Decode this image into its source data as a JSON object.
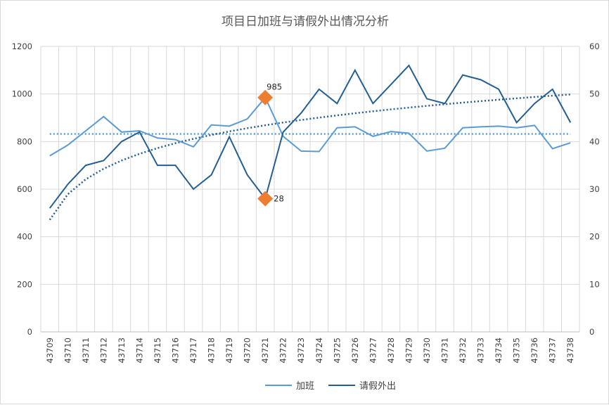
{
  "chart_data": {
    "type": "line",
    "title": "项目日加班与请假外出情况分析",
    "categories": [
      "43709",
      "43710",
      "43711",
      "43712",
      "43713",
      "43714",
      "43715",
      "43716",
      "43717",
      "43718",
      "43719",
      "43720",
      "43721",
      "43722",
      "43723",
      "43724",
      "43725",
      "43726",
      "43727",
      "43728",
      "43729",
      "43730",
      "43731",
      "43732",
      "43733",
      "43734",
      "43735",
      "43736",
      "43737",
      "43738"
    ],
    "y_left": {
      "min": 0,
      "max": 1200,
      "ticks": [
        "0",
        "200",
        "400",
        "600",
        "800",
        "1000",
        "1200"
      ]
    },
    "y_right": {
      "min": 0,
      "max": 60,
      "ticks": [
        "0",
        "10",
        "20",
        "30",
        "40",
        "50",
        "60"
      ]
    },
    "series": [
      {
        "name": "加班",
        "axis": "left",
        "color": "#5b9bd5",
        "values": [
          740,
          785,
          845,
          905,
          840,
          845,
          815,
          808,
          778,
          870,
          865,
          895,
          985,
          822,
          760,
          758,
          858,
          862,
          822,
          842,
          835,
          760,
          772,
          858,
          862,
          865,
          858,
          868,
          770,
          795
        ],
        "average": 832,
        "average_color": "#4f9fd8"
      },
      {
        "name": "请假外出",
        "axis": "right",
        "color": "#255e91",
        "values": [
          26,
          31,
          35,
          36,
          40,
          42,
          35,
          35,
          30,
          33,
          41,
          33,
          28,
          42,
          46,
          51,
          48,
          55,
          48,
          52,
          56,
          49,
          48,
          54,
          53,
          51,
          44,
          48,
          51,
          44
        ],
        "trend": "log",
        "trend_color": "#255e91"
      }
    ],
    "annotations": [
      {
        "series": "加班",
        "index": 12,
        "label": "985",
        "color": "#ed7d31"
      },
      {
        "series": "请假外出",
        "index": 12,
        "label": "28",
        "color": "#ed7d31"
      }
    ],
    "legend": {
      "position": "bottom",
      "items": [
        "加班",
        "请假外出"
      ]
    }
  }
}
